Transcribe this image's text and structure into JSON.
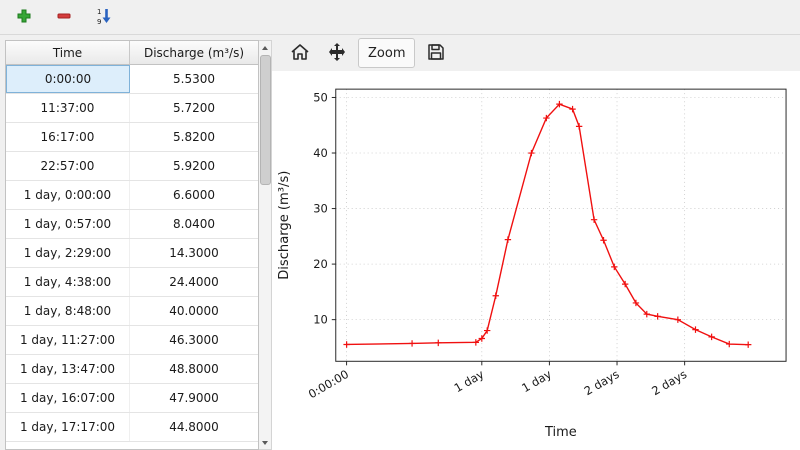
{
  "top_toolbar": {
    "icons": [
      "add-row-icon",
      "delete-row-icon",
      "sort-ascending-icon"
    ]
  },
  "table": {
    "columns": [
      "Time",
      "Discharge (m³/s)"
    ],
    "selected_cell": {
      "row": 0,
      "column": "Time"
    },
    "rows": [
      {
        "time": "0:00:00",
        "discharge": "5.5300"
      },
      {
        "time": "11:37:00",
        "discharge": "5.7200"
      },
      {
        "time": "16:17:00",
        "discharge": "5.8200"
      },
      {
        "time": "22:57:00",
        "discharge": "5.9200"
      },
      {
        "time": "1 day, 0:00:00",
        "discharge": "6.6000"
      },
      {
        "time": "1 day, 0:57:00",
        "discharge": "8.0400"
      },
      {
        "time": "1 day, 2:29:00",
        "discharge": "14.3000"
      },
      {
        "time": "1 day, 4:38:00",
        "discharge": "24.4000"
      },
      {
        "time": "1 day, 8:48:00",
        "discharge": "40.0000"
      },
      {
        "time": "1 day, 11:27:00",
        "discharge": "46.3000"
      },
      {
        "time": "1 day, 13:47:00",
        "discharge": "48.8000"
      },
      {
        "time": "1 day, 16:07:00",
        "discharge": "47.9000"
      },
      {
        "time": "1 day, 17:17:00",
        "discharge": "44.8000"
      }
    ]
  },
  "plot_toolbar": {
    "icons": [
      "home-icon",
      "pan-icon",
      "save-icon"
    ],
    "zoom_label": "Zoom"
  },
  "chart_data": {
    "type": "line",
    "title": "",
    "xlabel": "Time",
    "ylabel": "Discharge (m³/s)",
    "line_color": "#f01010",
    "marker": "+",
    "grid": true,
    "xlim": [
      -0.08,
      3.25
    ],
    "ylim": [
      2.5,
      51.5
    ],
    "x_tick_positions_days": [
      0,
      1,
      1.5,
      2,
      2.5
    ],
    "x_tick_labels": [
      "0:00:00",
      "1 day",
      "1 day",
      "2 days",
      "2 days"
    ],
    "y_ticks": [
      10,
      20,
      30,
      40,
      50
    ],
    "x_days": [
      0,
      0.484,
      0.678,
      0.956,
      1.0,
      1.0396,
      1.1035,
      1.1931,
      1.3667,
      1.4771,
      1.5743,
      1.6715,
      1.7201,
      1.83,
      1.9,
      1.98,
      2.06,
      2.14,
      2.22,
      2.3,
      2.45,
      2.58,
      2.7,
      2.83,
      2.97
    ],
    "values": [
      5.53,
      5.72,
      5.82,
      5.92,
      6.6,
      8.04,
      14.3,
      24.4,
      40.0,
      46.3,
      48.8,
      47.9,
      44.8,
      28.0,
      24.3,
      19.5,
      16.4,
      13.0,
      11.0,
      10.6,
      10.0,
      8.2,
      6.9,
      5.6,
      5.5
    ]
  }
}
